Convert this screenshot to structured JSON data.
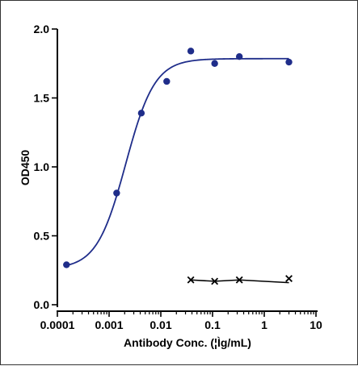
{
  "chart_data": {
    "type": "scatter",
    "title": "",
    "xlabel": "Antibody Conc. (¦Ìg/mL)",
    "ylabel": "OD450",
    "xscale": "log",
    "xlim": [
      0.0001,
      10
    ],
    "ylim": [
      0,
      2.0
    ],
    "x_ticks": [
      "0.0001",
      "0.001",
      "0.01",
      "0.1",
      "1",
      "10"
    ],
    "y_ticks": [
      "0.0",
      "0.5",
      "1.0",
      "1.5",
      "2.0"
    ],
    "grid": false,
    "colors": {
      "series1": "#1f2d8a",
      "series2": "#000000"
    },
    "series": [
      {
        "marker": "circle",
        "fit": "sigmoid",
        "x": [
          0.00015,
          0.0014,
          0.0042,
          0.013,
          0.038,
          0.11,
          0.33,
          3.0
        ],
        "y": [
          0.29,
          0.81,
          1.39,
          1.62,
          1.84,
          1.75,
          1.8,
          1.76
        ]
      },
      {
        "marker": "x",
        "fit": "line",
        "x": [
          0.038,
          0.11,
          0.33,
          3.0
        ],
        "y": [
          0.18,
          0.17,
          0.18,
          0.19
        ]
      }
    ]
  }
}
